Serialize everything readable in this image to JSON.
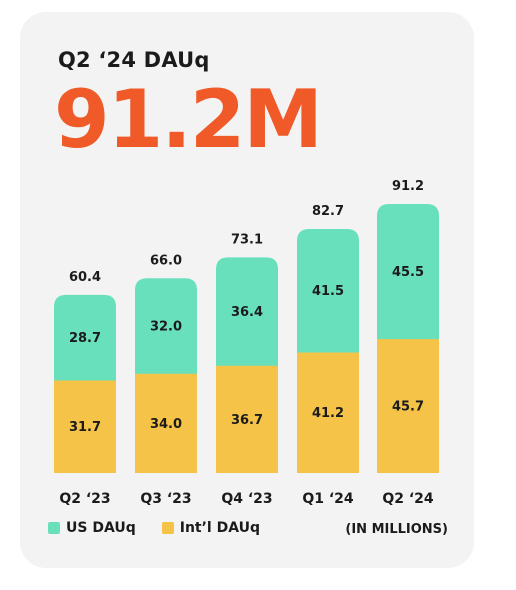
{
  "header": {
    "subtitle": "Q2 ‘24 DAUq",
    "headline": "91.2M"
  },
  "legend": {
    "us_label": "US DAUq",
    "intl_label": "Int’l DAUq"
  },
  "unit_note": "(IN MILLIONS)",
  "colors": {
    "us": "#69e0bc",
    "intl": "#f5c347",
    "headline": "#f05a28",
    "card": "#f3f3f4"
  },
  "chart_data": {
    "type": "bar",
    "stacked": true,
    "categories": [
      "Q2 ‘23",
      "Q3 ‘23",
      "Q4 ‘23",
      "Q1 ‘24",
      "Q2 ‘24"
    ],
    "series": [
      {
        "name": "Int’l DAUq",
        "values": [
          31.7,
          34.0,
          36.7,
          41.2,
          45.7
        ],
        "labels": [
          "31.7",
          "34.0",
          "36.7",
          "41.2",
          "45.7"
        ]
      },
      {
        "name": "US DAUq",
        "values": [
          28.7,
          32.0,
          36.4,
          41.5,
          45.5
        ],
        "labels": [
          "28.7",
          "32.0",
          "36.4",
          "41.5",
          "45.5"
        ]
      }
    ],
    "totals": [
      60.4,
      66.0,
      73.1,
      82.7,
      91.2
    ],
    "total_labels": [
      "60.4",
      "66.0",
      "73.1",
      "82.7",
      "91.2"
    ],
    "title": "Q2 ‘24 DAUq",
    "xlabel": "",
    "ylabel": "",
    "grid": false,
    "legend": "bottom-left"
  }
}
